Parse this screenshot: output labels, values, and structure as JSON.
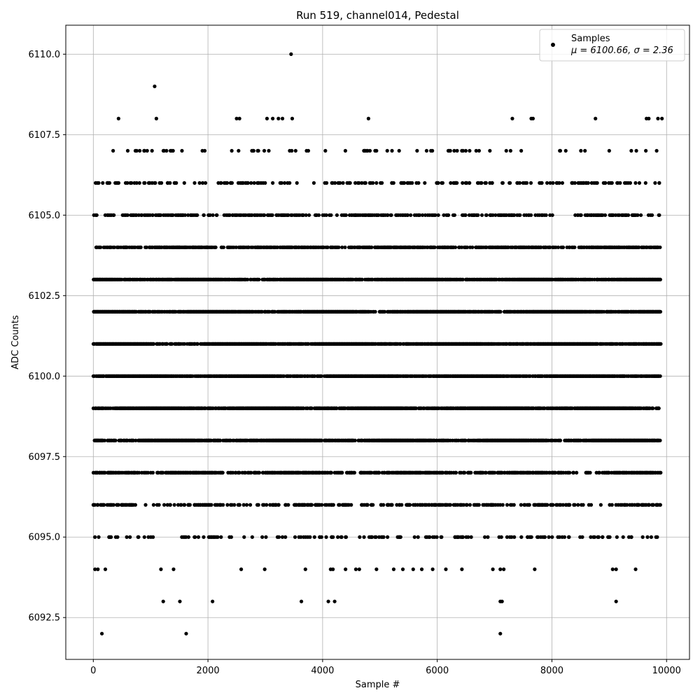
{
  "chart_data": {
    "type": "scatter",
    "title": "Run 519, channel014, Pedestal",
    "xlabel": "Sample #",
    "ylabel": "ADC Counts",
    "xlim": [
      -480,
      10400
    ],
    "ylim": [
      6091.2,
      6110.9
    ],
    "x_ticks": [
      0,
      2000,
      4000,
      6000,
      8000,
      10000
    ],
    "x_tick_labels": [
      "0",
      "2000",
      "4000",
      "6000",
      "8000",
      "10000"
    ],
    "y_ticks": [
      6092.5,
      6095.0,
      6097.5,
      6100.0,
      6102.5,
      6105.0,
      6107.5,
      6110.0
    ],
    "y_tick_labels": [
      "6092.5",
      "6095.0",
      "6097.5",
      "6100.0",
      "6102.5",
      "6105.0",
      "6107.5",
      "6110.0"
    ],
    "grid": true,
    "legend_position": "top-right",
    "series": [
      {
        "name": "Samples",
        "color": "#000000",
        "marker": "circle",
        "n_points": 9900,
        "mean": 6100.66,
        "sigma": 2.36,
        "dense_levels": [
          6097,
          6098,
          6099,
          6100,
          6101,
          6102,
          6103,
          6104,
          6105,
          6106,
          6107
        ],
        "level_density": {
          "6095": 0.16,
          "6096": 0.34,
          "6097": 0.62,
          "6098": 0.93,
          "6099": 0.99,
          "6100": 1.0,
          "6101": 1.0,
          "6102": 1.0,
          "6103": 0.92,
          "6104": 0.62,
          "6105": 0.36,
          "6106": 0.22,
          "6107": 0.08
        },
        "outliers": [
          {
            "x": 3450,
            "y": 6110
          },
          {
            "x": 1070,
            "y": 6109
          },
          {
            "x": 440,
            "y": 6108
          },
          {
            "x": 1100,
            "y": 6108
          },
          {
            "x": 2500,
            "y": 6108
          },
          {
            "x": 2550,
            "y": 6108
          },
          {
            "x": 3030,
            "y": 6108
          },
          {
            "x": 3130,
            "y": 6108
          },
          {
            "x": 3230,
            "y": 6108
          },
          {
            "x": 3300,
            "y": 6108
          },
          {
            "x": 3470,
            "y": 6108
          },
          {
            "x": 4800,
            "y": 6108
          },
          {
            "x": 7310,
            "y": 6108
          },
          {
            "x": 7640,
            "y": 6108
          },
          {
            "x": 7670,
            "y": 6108
          },
          {
            "x": 8760,
            "y": 6108
          },
          {
            "x": 9650,
            "y": 6108
          },
          {
            "x": 9690,
            "y": 6108
          },
          {
            "x": 9850,
            "y": 6108
          },
          {
            "x": 9920,
            "y": 6108
          },
          {
            "x": 150,
            "y": 6092
          },
          {
            "x": 1620,
            "y": 6092
          },
          {
            "x": 7100,
            "y": 6092
          },
          {
            "x": 1220,
            "y": 6093
          },
          {
            "x": 1510,
            "y": 6093
          },
          {
            "x": 2080,
            "y": 6093
          },
          {
            "x": 3630,
            "y": 6093
          },
          {
            "x": 4100,
            "y": 6093
          },
          {
            "x": 4210,
            "y": 6093
          },
          {
            "x": 7100,
            "y": 6093
          },
          {
            "x": 7130,
            "y": 6093
          },
          {
            "x": 9120,
            "y": 6093
          },
          {
            "x": 30,
            "y": 6094
          },
          {
            "x": 80,
            "y": 6094
          },
          {
            "x": 210,
            "y": 6094
          },
          {
            "x": 1180,
            "y": 6094
          },
          {
            "x": 1400,
            "y": 6094
          },
          {
            "x": 2580,
            "y": 6094
          },
          {
            "x": 2990,
            "y": 6094
          },
          {
            "x": 3700,
            "y": 6094
          },
          {
            "x": 4140,
            "y": 6094
          },
          {
            "x": 4180,
            "y": 6094
          },
          {
            "x": 4400,
            "y": 6094
          },
          {
            "x": 4580,
            "y": 6094
          },
          {
            "x": 4640,
            "y": 6094
          },
          {
            "x": 4940,
            "y": 6094
          },
          {
            "x": 5240,
            "y": 6094
          },
          {
            "x": 5400,
            "y": 6094
          },
          {
            "x": 5580,
            "y": 6094
          },
          {
            "x": 5730,
            "y": 6094
          },
          {
            "x": 5920,
            "y": 6094
          },
          {
            "x": 6150,
            "y": 6094
          },
          {
            "x": 6430,
            "y": 6094
          },
          {
            "x": 6970,
            "y": 6094
          },
          {
            "x": 7100,
            "y": 6094
          },
          {
            "x": 7160,
            "y": 6094
          },
          {
            "x": 7700,
            "y": 6094
          },
          {
            "x": 9060,
            "y": 6094
          },
          {
            "x": 9120,
            "y": 6094
          },
          {
            "x": 9460,
            "y": 6094
          }
        ]
      }
    ]
  },
  "legend": {
    "series_label": "Samples",
    "stats_label": "μ = 6100.66, σ = 2.36"
  }
}
